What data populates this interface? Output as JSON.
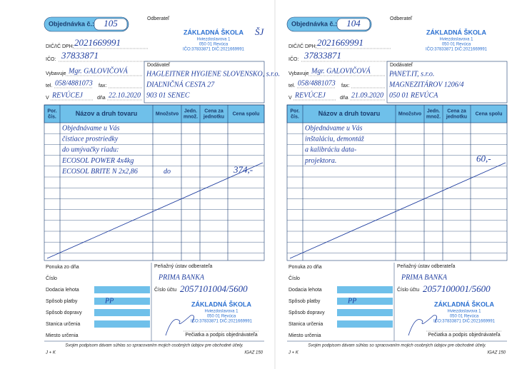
{
  "labels": {
    "order_no": "Objednávka č.:",
    "customer": "Odberateľ",
    "vat_id": "DIČ/IČ DPH:",
    "company_id": "IČO:",
    "handled_by": "Vybavuje",
    "tel": "tel.",
    "fax": "fax:",
    "supplier": "Dodávateľ",
    "in": "V",
    "date": "dňa",
    "columns": [
      [
        "Por.",
        "čís."
      ],
      [
        "Názov a druh tovaru"
      ],
      [
        "Množstvo"
      ],
      [
        "Jedn.",
        "množ."
      ],
      [
        "Cena za",
        "jednotku"
      ],
      [
        "Cena spolu"
      ]
    ],
    "offer_date": "Ponuka zo dňa",
    "bank": "Peňažný ústav odberateľa",
    "number": "Číslo",
    "account": "Číslo účtu",
    "delivery_term": "Dodacia lehota",
    "payment": "Spôsob platby",
    "transport": "Spôsob dopravy",
    "station": "Stanica určenia",
    "destination": "Miesto určenia",
    "signature": "Pečiatka a podpis objednávateľa",
    "consent": "Svojim podpisom dávam súhlas so spracovaním mojich osobných údajov pre obchodné účely.",
    "code_left": "J + K",
    "code_right": "IGAZ 150"
  },
  "stamp": {
    "name": "ZÁKLADNÁ ŠKOLA",
    "street": "Hviezdoslavova 1",
    "city": "050 01 Revúca",
    "ids": "IČO:37833871 DIČ:2021669991"
  },
  "forms": [
    {
      "order_number": "105",
      "stamp_note": "ŠJ",
      "vat_id": "2021669991",
      "company_id": "37833871",
      "handled_by": "Mgr. GALOVIČOVÁ",
      "tel": "058/4881073",
      "supplier": [
        "HAGLEITNER HYGIENE SLOVENSKO, s.r.o.",
        "DIAĽNIČNÁ CESTA 27",
        "903 01 SENEC"
      ],
      "place": "REVÚCEJ",
      "date": "22.10.2020",
      "rows": [
        {
          "name": "Objednávame u Vás"
        },
        {
          "name": "čistiace prostriedky"
        },
        {
          "name": "do umývačky riadu:"
        },
        {
          "name": "ECOSOL POWER 4x4kg"
        },
        {
          "name": "ECOSOL BRITE N 2x2,86",
          "quantity": "do",
          "total": "374,-"
        }
      ],
      "bank": "PRIMA BANKA",
      "account": "2057101004/5600",
      "payment": "PP"
    },
    {
      "order_number": "104",
      "vat_id": "2021669991",
      "company_id": "37833871",
      "handled_by": "Mgr. GALOVIČOVÁ",
      "tel": "058/4881073",
      "supplier": [
        "PANET.IT, s.r.o.",
        "MAGNEZITÁROV 1206/4",
        "050 01 REVÚCA"
      ],
      "place": "REVÚCEJ",
      "date": "21.09.2020",
      "rows": [
        {
          "name": "Objednávame u Vás"
        },
        {
          "name": "inštaláciu, demontáž"
        },
        {
          "name": "a kalibráciu data-"
        },
        {
          "name": "projektora.",
          "total": "60,-"
        }
      ],
      "bank": "PRIMA BANKA",
      "account": "2057100001/5600",
      "payment": "PP"
    }
  ]
}
